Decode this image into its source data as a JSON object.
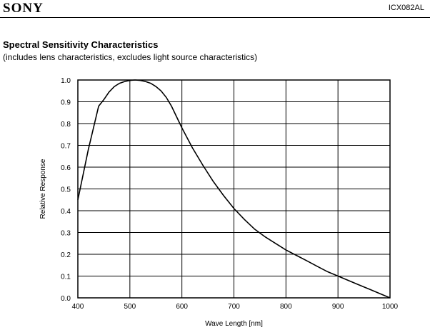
{
  "header": {
    "brand": "SONY",
    "part_number": "ICX082AL"
  },
  "chart_title": "Spectral Sensitivity Characteristics",
  "chart_subtitle": "(includes lens characteristics, excludes light source characteristics)",
  "chart_data": {
    "type": "line",
    "title": "Spectral Sensitivity Characteristics",
    "subtitle": "(includes lens characteristics, excludes light source characteristics)",
    "xlabel": "Wave Length [nm]",
    "ylabel": "Relative Response",
    "xlim": [
      400,
      1000
    ],
    "ylim": [
      0,
      1.0
    ],
    "x_ticks": [
      "400",
      "500",
      "600",
      "700",
      "800",
      "900",
      "1000"
    ],
    "y_ticks": [
      "0.0",
      "0.1",
      "0.2",
      "0.3",
      "0.4",
      "0.5",
      "0.6",
      "0.7",
      "0.8",
      "0.9",
      "1.0"
    ],
    "grid": true,
    "series": [
      {
        "x": [
          400,
          420,
          440,
          450,
          460,
          470,
          480,
          490,
          500,
          510,
          520,
          530,
          540,
          550,
          560,
          570,
          580,
          590,
          600,
          620,
          640,
          660,
          680,
          700,
          720,
          740,
          760,
          780,
          800,
          820,
          840,
          860,
          880,
          900,
          920,
          940,
          960,
          980,
          1000
        ],
        "y": [
          0.45,
          0.68,
          0.88,
          0.91,
          0.945,
          0.97,
          0.985,
          0.993,
          0.998,
          1.0,
          0.998,
          0.993,
          0.985,
          0.97,
          0.95,
          0.92,
          0.88,
          0.83,
          0.78,
          0.69,
          0.61,
          0.535,
          0.47,
          0.41,
          0.36,
          0.315,
          0.28,
          0.25,
          0.22,
          0.195,
          0.17,
          0.145,
          0.12,
          0.1,
          0.08,
          0.06,
          0.04,
          0.02,
          0.0
        ],
        "color": "#000000"
      }
    ]
  }
}
